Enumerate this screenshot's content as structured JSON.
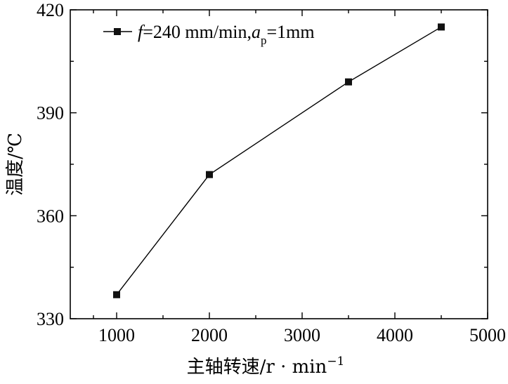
{
  "chart_data": {
    "type": "line",
    "xlabel": "主轴转速/r · min",
    "xlabel_sup": "−1",
    "ylabel": "温度/℃",
    "xlim": [
      500,
      5000
    ],
    "ylim": [
      330,
      420
    ],
    "x_ticks": [
      1000,
      2000,
      3000,
      4000,
      5000
    ],
    "x_tick_labels": [
      "1000",
      "2000",
      "3000",
      "4000",
      "5000"
    ],
    "y_ticks": [
      330,
      360,
      390,
      420
    ],
    "y_tick_labels": [
      "330",
      "360",
      "390",
      "420"
    ],
    "grid": false,
    "legend_position": "top-left",
    "legend": {
      "f_symbol": "f",
      "f_value": "=240 mm/min,",
      "a_symbol": "a",
      "a_subscript": "p",
      "a_value": "=1mm"
    },
    "series": [
      {
        "marker": "square",
        "color": "#111111",
        "x": [
          1000,
          2000,
          3500,
          4500
        ],
        "y": [
          337,
          372,
          399,
          415
        ]
      }
    ]
  }
}
